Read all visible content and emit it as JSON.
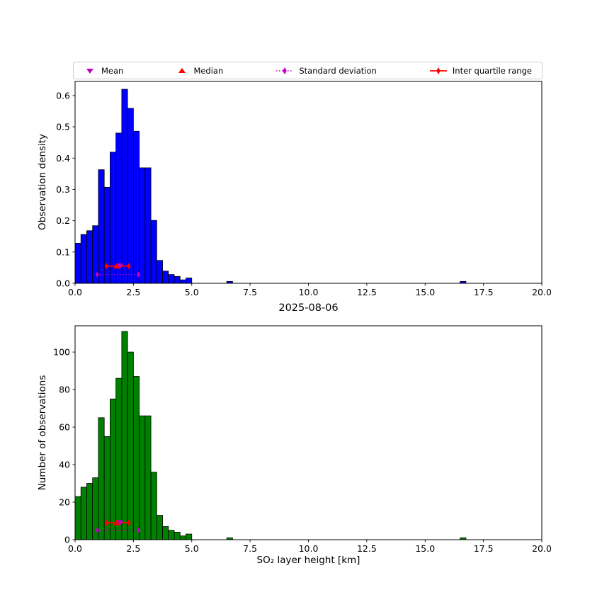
{
  "figure": {
    "title": "2025-08-06",
    "xlabel": "SO₂ layer height [km]",
    "background_color": "#ffffff"
  },
  "legend": {
    "items": [
      {
        "label": "Mean",
        "marker": "triangle-down",
        "color": "#bf00bf"
      },
      {
        "label": "Median",
        "marker": "triangle-up",
        "color": "#ff0000"
      },
      {
        "label": "Standard deviation",
        "marker": "diamond-dotted-line",
        "color": "#bf00bf"
      },
      {
        "label": "Inter quartile range",
        "marker": "diamond-solid-line",
        "color": "#ff0000"
      }
    ]
  },
  "stats": {
    "mean": 1.93,
    "median": 1.78,
    "std_range": [
      0.95,
      2.72
    ],
    "iqr_range": [
      1.35,
      2.3
    ]
  },
  "chart_data": [
    {
      "type": "bar",
      "ylabel": "Observation density",
      "bar_color": "#0000ff",
      "bar_edge_color": "#000000",
      "xlim": [
        0,
        20
      ],
      "ylim": [
        0,
        0.645
      ],
      "xticks": [
        0,
        2.5,
        5,
        7.5,
        10,
        12.5,
        15,
        17.5,
        20
      ],
      "xtick_labels": [
        "0.0",
        "2.5",
        "5.0",
        "7.5",
        "10.0",
        "12.5",
        "15.0",
        "17.5",
        "20.0"
      ],
      "yticks": [
        0,
        0.1,
        0.2,
        0.3,
        0.4,
        0.5,
        0.6
      ],
      "ytick_labels": [
        "0.0",
        "0.1",
        "0.2",
        "0.3",
        "0.4",
        "0.5",
        "0.6"
      ],
      "bin_start": 0,
      "bin_width": 0.25,
      "values": [
        0.128,
        0.156,
        0.168,
        0.184,
        0.363,
        0.307,
        0.419,
        0.48,
        0.62,
        0.559,
        0.486,
        0.369,
        0.369,
        0.201,
        0.073,
        0.039,
        0.028,
        0.022,
        0.011,
        0.017
      ],
      "extra_bars": [
        {
          "x0": 6.5,
          "x1": 6.75,
          "value": 0.006
        },
        {
          "x0": 16.5,
          "x1": 16.75,
          "value": 0.006
        }
      ],
      "marker_rows": {
        "std_y": 0.028,
        "center_y": 0.055
      }
    },
    {
      "type": "bar",
      "ylabel": "Number of observations",
      "bar_color": "#008000",
      "bar_edge_color": "#000000",
      "xlim": [
        0,
        20
      ],
      "ylim": [
        0,
        114
      ],
      "xticks": [
        0,
        2.5,
        5,
        7.5,
        10,
        12.5,
        15,
        17.5,
        20
      ],
      "xtick_labels": [
        "0.0",
        "2.5",
        "5.0",
        "7.5",
        "10.0",
        "12.5",
        "15.0",
        "17.5",
        "20.0"
      ],
      "yticks": [
        0,
        20,
        40,
        60,
        80,
        100
      ],
      "ytick_labels": [
        "0",
        "20",
        "40",
        "60",
        "80",
        "100"
      ],
      "bin_start": 0,
      "bin_width": 0.25,
      "values": [
        23,
        28,
        30,
        33,
        65,
        55,
        75,
        86,
        111,
        100,
        87,
        66,
        66,
        36,
        13,
        7,
        5,
        4,
        2,
        3
      ],
      "extra_bars": [
        {
          "x0": 6.5,
          "x1": 6.75,
          "value": 1
        },
        {
          "x0": 16.5,
          "x1": 16.75,
          "value": 1
        }
      ],
      "marker_rows": {
        "std_y": 5,
        "center_y": 9
      }
    }
  ]
}
